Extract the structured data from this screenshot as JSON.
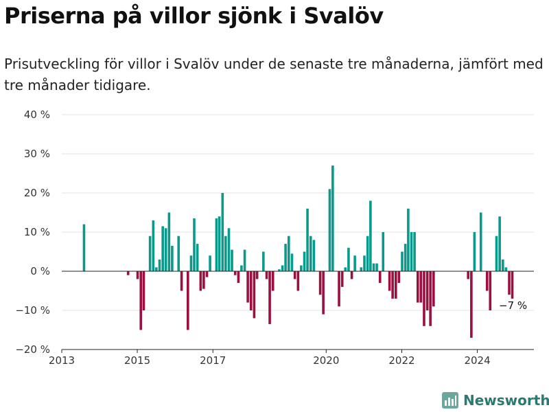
{
  "title": "Priserna på villor sjönk i Svalöv",
  "subtitle": "Prisutveckling för villor i Svalöv under de senaste tre månaderna, jämfört med tre månader tidigare.",
  "brand": {
    "name": "Newsworthy",
    "icon": "bar-chart-logo-icon",
    "color": "#2b7a6f"
  },
  "colors": {
    "positive": "#0a9a8c",
    "negative": "#9c0f3e",
    "axis": "#222222",
    "grid": "#e3e3e3"
  },
  "chart_data": {
    "type": "bar",
    "ylabel": "",
    "xlabel": "",
    "ylim": [
      -20,
      40
    ],
    "yticks": [
      {
        "value": 40,
        "label": "40 %"
      },
      {
        "value": 30,
        "label": "30 %"
      },
      {
        "value": 20,
        "label": "20 %"
      },
      {
        "value": 10,
        "label": "10 %"
      },
      {
        "value": 0,
        "label": "0 %"
      },
      {
        "value": -10,
        "label": "−10 %"
      },
      {
        "value": -20,
        "label": "−20 %"
      }
    ],
    "xlim": [
      "2013-01-01",
      "2025-07-01"
    ],
    "xticks": [
      {
        "value": "2013-01-01",
        "label": "2013"
      },
      {
        "value": "2015-01-01",
        "label": "2015"
      },
      {
        "value": "2017-01-01",
        "label": "2017"
      },
      {
        "value": "2020-01-01",
        "label": "2020"
      },
      {
        "value": "2022-01-01",
        "label": "2022"
      },
      {
        "value": "2024-01-01",
        "label": "2024"
      }
    ],
    "grid": true,
    "annotation": {
      "date": "2024-12-01",
      "value": -7,
      "label": "−7 %"
    },
    "series": [
      {
        "values": [
          {
            "date": "2013-08-01",
            "value": 12
          },
          {
            "date": "2014-10-01",
            "value": -1
          },
          {
            "date": "2015-01-01",
            "value": -2
          },
          {
            "date": "2015-02-01",
            "value": -15
          },
          {
            "date": "2015-03-01",
            "value": -10
          },
          {
            "date": "2015-05-01",
            "value": 9
          },
          {
            "date": "2015-06-01",
            "value": 13
          },
          {
            "date": "2015-07-01",
            "value": 1
          },
          {
            "date": "2015-08-01",
            "value": 3
          },
          {
            "date": "2015-09-01",
            "value": 11.5
          },
          {
            "date": "2015-10-01",
            "value": 11
          },
          {
            "date": "2015-11-01",
            "value": 15
          },
          {
            "date": "2015-12-01",
            "value": 6.5
          },
          {
            "date": "2016-02-01",
            "value": 9
          },
          {
            "date": "2016-03-01",
            "value": -5
          },
          {
            "date": "2016-05-01",
            "value": -15
          },
          {
            "date": "2016-06-01",
            "value": 4
          },
          {
            "date": "2016-07-01",
            "value": 13.5
          },
          {
            "date": "2016-08-01",
            "value": 7
          },
          {
            "date": "2016-09-01",
            "value": -5
          },
          {
            "date": "2016-10-01",
            "value": -4.5
          },
          {
            "date": "2016-11-01",
            "value": -1.5
          },
          {
            "date": "2016-12-01",
            "value": 4
          },
          {
            "date": "2017-02-01",
            "value": 13.5
          },
          {
            "date": "2017-03-01",
            "value": 14
          },
          {
            "date": "2017-04-01",
            "value": 20
          },
          {
            "date": "2017-05-01",
            "value": 9
          },
          {
            "date": "2017-06-01",
            "value": 11
          },
          {
            "date": "2017-07-01",
            "value": 5.5
          },
          {
            "date": "2017-08-01",
            "value": -1
          },
          {
            "date": "2017-09-01",
            "value": -3
          },
          {
            "date": "2017-10-01",
            "value": 1.5
          },
          {
            "date": "2017-11-01",
            "value": 5.5
          },
          {
            "date": "2017-12-01",
            "value": -8
          },
          {
            "date": "2018-01-01",
            "value": -10
          },
          {
            "date": "2018-02-01",
            "value": -12
          },
          {
            "date": "2018-03-01",
            "value": -2
          },
          {
            "date": "2018-05-01",
            "value": 5
          },
          {
            "date": "2018-06-01",
            "value": -2
          },
          {
            "date": "2018-07-01",
            "value": -13.5
          },
          {
            "date": "2018-08-01",
            "value": -5
          },
          {
            "date": "2018-10-01",
            "value": 0.5
          },
          {
            "date": "2018-11-01",
            "value": 1.5
          },
          {
            "date": "2018-12-01",
            "value": 7
          },
          {
            "date": "2019-01-01",
            "value": 9
          },
          {
            "date": "2019-02-01",
            "value": 4.5
          },
          {
            "date": "2019-03-01",
            "value": -2
          },
          {
            "date": "2019-04-01",
            "value": -5
          },
          {
            "date": "2019-05-01",
            "value": 1.5
          },
          {
            "date": "2019-06-01",
            "value": 5
          },
          {
            "date": "2019-07-01",
            "value": 16
          },
          {
            "date": "2019-08-01",
            "value": 9
          },
          {
            "date": "2019-09-01",
            "value": 8
          },
          {
            "date": "2019-11-01",
            "value": -6
          },
          {
            "date": "2019-12-01",
            "value": -11
          },
          {
            "date": "2020-02-01",
            "value": 21
          },
          {
            "date": "2020-03-01",
            "value": 27
          },
          {
            "date": "2020-05-01",
            "value": -9
          },
          {
            "date": "2020-06-01",
            "value": -4
          },
          {
            "date": "2020-07-01",
            "value": 1
          },
          {
            "date": "2020-08-01",
            "value": 6
          },
          {
            "date": "2020-09-01",
            "value": -2
          },
          {
            "date": "2020-10-01",
            "value": 4
          },
          {
            "date": "2020-12-01",
            "value": 1
          },
          {
            "date": "2021-01-01",
            "value": 4
          },
          {
            "date": "2021-02-01",
            "value": 9
          },
          {
            "date": "2021-03-01",
            "value": 18
          },
          {
            "date": "2021-04-01",
            "value": 2
          },
          {
            "date": "2021-05-01",
            "value": 2
          },
          {
            "date": "2021-06-01",
            "value": -3
          },
          {
            "date": "2021-07-01",
            "value": 10
          },
          {
            "date": "2021-09-01",
            "value": -5
          },
          {
            "date": "2021-10-01",
            "value": -7
          },
          {
            "date": "2021-11-01",
            "value": -7
          },
          {
            "date": "2021-12-01",
            "value": -3
          },
          {
            "date": "2022-01-01",
            "value": 5
          },
          {
            "date": "2022-02-01",
            "value": 7
          },
          {
            "date": "2022-03-01",
            "value": 16
          },
          {
            "date": "2022-04-01",
            "value": 10
          },
          {
            "date": "2022-05-01",
            "value": 10
          },
          {
            "date": "2022-06-01",
            "value": -8
          },
          {
            "date": "2022-07-01",
            "value": -8
          },
          {
            "date": "2022-08-01",
            "value": -14
          },
          {
            "date": "2022-09-01",
            "value": -10
          },
          {
            "date": "2022-10-01",
            "value": -14
          },
          {
            "date": "2022-11-01",
            "value": -9
          },
          {
            "date": "2023-10-01",
            "value": -2
          },
          {
            "date": "2023-11-01",
            "value": -17
          },
          {
            "date": "2023-12-01",
            "value": 10
          },
          {
            "date": "2024-02-01",
            "value": 15
          },
          {
            "date": "2024-04-01",
            "value": -5
          },
          {
            "date": "2024-05-01",
            "value": -10
          },
          {
            "date": "2024-07-01",
            "value": 9
          },
          {
            "date": "2024-08-01",
            "value": 14
          },
          {
            "date": "2024-09-01",
            "value": 3
          },
          {
            "date": "2024-10-01",
            "value": 1
          },
          {
            "date": "2024-11-01",
            "value": -6
          },
          {
            "date": "2024-12-01",
            "value": -7
          }
        ]
      }
    ]
  }
}
